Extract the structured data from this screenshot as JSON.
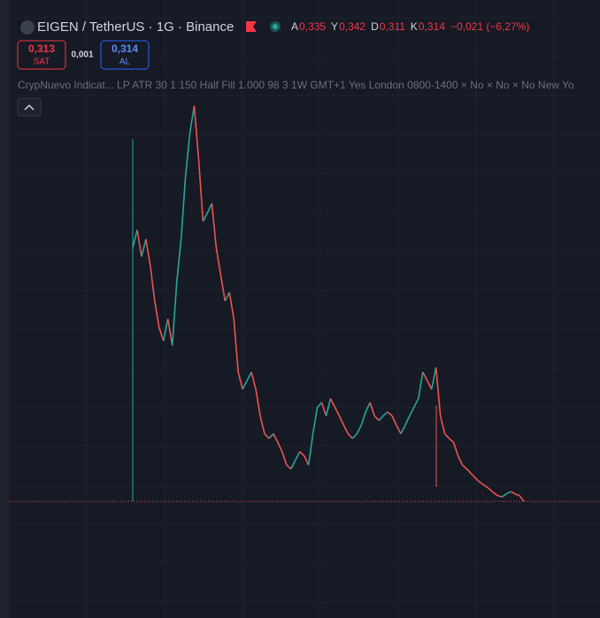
{
  "header": {
    "symbol": "EIGEN / TetherUS · 1G · Binance",
    "ohlc": [
      {
        "label": "A",
        "value": "0,335"
      },
      {
        "label": "Y",
        "value": "0,342"
      },
      {
        "label": "D",
        "value": "0,311"
      },
      {
        "label": "K",
        "value": "0,314"
      }
    ],
    "change": "−0,021 (−6,27%)",
    "sell": {
      "price": "0,313",
      "label": "SAT"
    },
    "spread": "0,001",
    "buy": {
      "price": "0,314",
      "label": "AL"
    },
    "indicator": "CrypNuevo Indicat... LP ATR 30 1 150 Half Fill 1.000 98 3 1W GMT+1 Yes London 0800-1400 × No × No × No New Yo"
  },
  "chart_data": {
    "type": "line",
    "up_color": "#26a69a",
    "down_color": "#ef5350",
    "ylim": [
      0,
      5.6
    ],
    "values": [
      3.56,
      3.79,
      3.45,
      3.67,
      3.33,
      2.88,
      2.54,
      2.37,
      2.65,
      2.31,
      3.11,
      3.67,
      4.47,
      5.03,
      5.38,
      4.69,
      3.9,
      4.01,
      4.13,
      3.56,
      3.22,
      2.88,
      2.99,
      2.65,
      1.97,
      1.75,
      1.86,
      1.97,
      1.75,
      1.41,
      1.18,
      1.12,
      1.18,
      1.07,
      0.95,
      0.78,
      0.73,
      0.84,
      0.95,
      0.9,
      0.78,
      1.18,
      1.52,
      1.58,
      1.41,
      1.63,
      1.52,
      1.41,
      1.29,
      1.18,
      1.12,
      1.18,
      1.29,
      1.46,
      1.58,
      1.41,
      1.35,
      1.41,
      1.46,
      1.41,
      1.29,
      1.18,
      1.29,
      1.41,
      1.52,
      1.63,
      1.97,
      1.86,
      1.75,
      2.03,
      1.41,
      1.18,
      1.12,
      1.07,
      0.9,
      0.78,
      0.73,
      0.67,
      0.61,
      0.56,
      0.52,
      0.48,
      0.43,
      0.39,
      0.37,
      0.41,
      0.44,
      0.41,
      0.39,
      0.314
    ]
  }
}
